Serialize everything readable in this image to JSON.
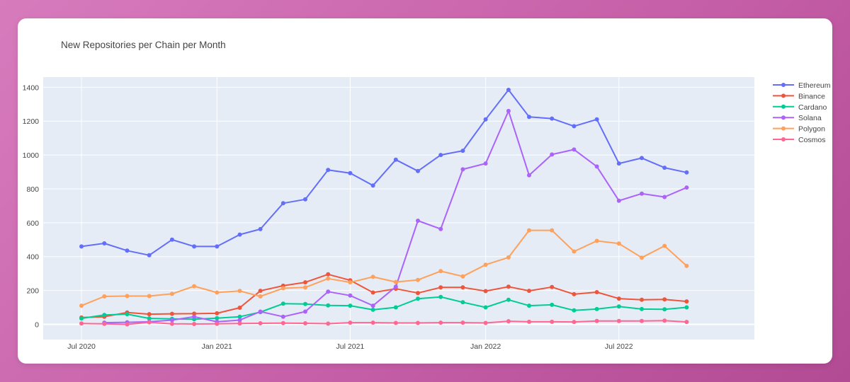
{
  "chart_data": {
    "type": "line",
    "title": "New Repositories per Chain per Month",
    "xlabel": "",
    "ylabel": "",
    "x": [
      "2020-07",
      "2020-08",
      "2020-09",
      "2020-10",
      "2020-11",
      "2020-12",
      "2021-01",
      "2021-02",
      "2021-03",
      "2021-04",
      "2021-05",
      "2021-06",
      "2021-07",
      "2021-08",
      "2021-09",
      "2021-10",
      "2021-11",
      "2021-12",
      "2022-01",
      "2022-02",
      "2022-03",
      "2022-04",
      "2022-05",
      "2022-06",
      "2022-07",
      "2022-08",
      "2022-09",
      "2022-10"
    ],
    "x_ticks": [
      {
        "date": "2020-07",
        "label": "Jul 2020"
      },
      {
        "date": "2021-01",
        "label": "Jan 2021"
      },
      {
        "date": "2021-07",
        "label": "Jul 2021"
      },
      {
        "date": "2022-01",
        "label": "Jan 2022"
      },
      {
        "date": "2022-07",
        "label": "Jul 2022"
      }
    ],
    "y_ticks": [
      0,
      200,
      400,
      600,
      800,
      1000,
      1200,
      1400
    ],
    "ylim": [
      -90,
      1460
    ],
    "xlim": [
      "2020-05-10",
      "2023-01-01"
    ],
    "grid": true,
    "legend_position": "right",
    "series": [
      {
        "name": "Ethereum",
        "color": "#636efa",
        "values": [
          460,
          478,
          435,
          408,
          500,
          460,
          460,
          530,
          562,
          715,
          738,
          912,
          893,
          820,
          972,
          905,
          1000,
          1025,
          1210,
          1385,
          1225,
          1215,
          1170,
          1210,
          950,
          982,
          925,
          897
        ]
      },
      {
        "name": "Binance",
        "color": "#ef553b",
        "values": [
          40,
          45,
          70,
          60,
          62,
          63,
          65,
          98,
          198,
          228,
          248,
          295,
          260,
          188,
          210,
          185,
          218,
          218,
          196,
          222,
          198,
          220,
          178,
          190,
          152,
          145,
          147,
          135
        ]
      },
      {
        "name": "Cardano",
        "color": "#00cc96",
        "values": [
          35,
          55,
          60,
          35,
          32,
          30,
          36,
          45,
          72,
          122,
          120,
          112,
          110,
          86,
          100,
          151,
          162,
          130,
          100,
          145,
          110,
          115,
          82,
          90,
          105,
          90,
          89,
          100
        ]
      },
      {
        "name": "Solana",
        "color": "#ab63fa",
        "values": [
          null,
          10,
          12,
          15,
          25,
          45,
          15,
          25,
          75,
          45,
          75,
          193,
          170,
          110,
          222,
          612,
          563,
          915,
          950,
          1260,
          880,
          1003,
          1032,
          932,
          730,
          772,
          752,
          808
        ]
      },
      {
        "name": "Polygon",
        "color": "#ffa15a",
        "values": [
          110,
          165,
          167,
          167,
          180,
          225,
          188,
          197,
          165,
          213,
          218,
          270,
          248,
          280,
          250,
          262,
          314,
          283,
          352,
          395,
          555,
          555,
          430,
          493,
          477,
          394,
          463,
          345
        ]
      },
      {
        "name": "Cosmos",
        "color": "#ff6692",
        "values": [
          5,
          3,
          0,
          12,
          3,
          2,
          3,
          5,
          6,
          7,
          6,
          4,
          10,
          10,
          8,
          8,
          10,
          10,
          8,
          18,
          15,
          15,
          14,
          20,
          20,
          20,
          22,
          14
        ]
      }
    ]
  }
}
